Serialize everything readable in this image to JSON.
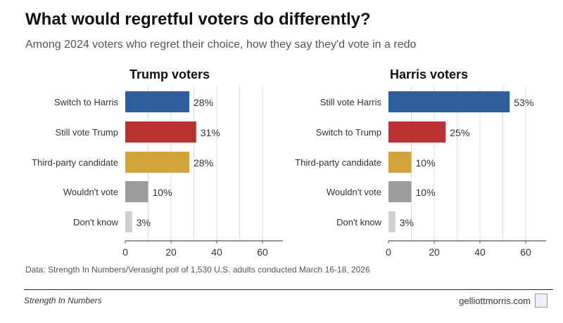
{
  "title": "What would regretful voters do differently?",
  "subtitle": "Among 2024 voters who regret their choice, how they say they'd vote in a redo",
  "source": "Data: Strength In Numbers/Verasight poll of 1,530 U.S. adults conducted March 16-18, 2026",
  "footer": {
    "brand": "Strength In Numbers",
    "site": "gelliottmorris.com",
    "logo_icon": "capitol-icon"
  },
  "chart_data": [
    {
      "type": "bar",
      "orientation": "horizontal",
      "title": "Trump voters",
      "categories": [
        "Switch to Harris",
        "Still vote Trump",
        "Third-party candidate",
        "Wouldn't vote",
        "Don't know"
      ],
      "values": [
        28,
        31,
        28,
        10,
        3
      ],
      "labels": [
        "28%",
        "31%",
        "28%",
        "10%",
        "3%"
      ],
      "colors": [
        "#2e5e9e",
        "#b83232",
        "#d1a53a",
        "#9b9b9b",
        "#cfcfcf"
      ],
      "xlim": [
        0,
        69
      ],
      "xticks": [
        0,
        20,
        40,
        60
      ],
      "grid": true
    },
    {
      "type": "bar",
      "orientation": "horizontal",
      "title": "Harris voters",
      "categories": [
        "Still vote Harris",
        "Switch to Trump",
        "Third-party candidate",
        "Wouldn't vote",
        "Don't know"
      ],
      "values": [
        53,
        25,
        10,
        10,
        3
      ],
      "labels": [
        "53%",
        "25%",
        "10%",
        "10%",
        "3%"
      ],
      "colors": [
        "#2e5e9e",
        "#b83232",
        "#d1a53a",
        "#9b9b9b",
        "#cfcfcf"
      ],
      "xlim": [
        0,
        69
      ],
      "xticks": [
        0,
        20,
        40,
        60
      ],
      "grid": true
    }
  ]
}
